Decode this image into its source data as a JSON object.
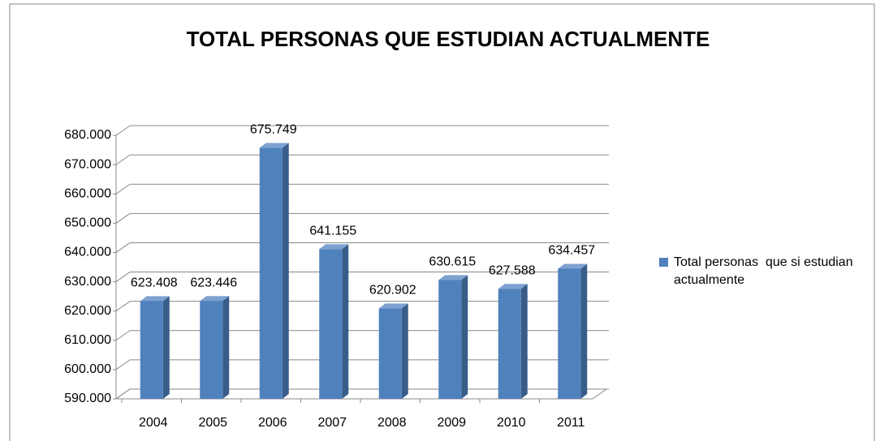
{
  "chart_data": {
    "type": "bar3d",
    "title": "TOTAL PERSONAS  QUE  ESTUDIAN ACTUALMENTE",
    "categories": [
      "2004",
      "2005",
      "2006",
      "2007",
      "2008",
      "2009",
      "2010",
      "2011"
    ],
    "series": [
      {
        "name": "Total personas  que si estudian actualmente",
        "color": "#4f81bd",
        "values": [
          623408,
          623446,
          675749,
          641155,
          620902,
          630615,
          627588,
          634457
        ],
        "value_labels": [
          "623.408",
          "623.446",
          "675.749",
          "641.155",
          "620.902",
          "630.615",
          "627.588",
          "634.457"
        ]
      }
    ],
    "ylim": [
      590000,
      680000
    ],
    "yticks": [
      {
        "value": 590000,
        "label": "590.000"
      },
      {
        "value": 600000,
        "label": "600.000"
      },
      {
        "value": 610000,
        "label": "610.000"
      },
      {
        "value": 620000,
        "label": "620.000"
      },
      {
        "value": 630000,
        "label": "630.000"
      },
      {
        "value": 640000,
        "label": "640.000"
      },
      {
        "value": 650000,
        "label": "650.000"
      },
      {
        "value": 660000,
        "label": "660.000"
      },
      {
        "value": 670000,
        "label": "670.000"
      },
      {
        "value": 680000,
        "label": "680.000"
      }
    ],
    "grid": true,
    "legend": "right"
  }
}
